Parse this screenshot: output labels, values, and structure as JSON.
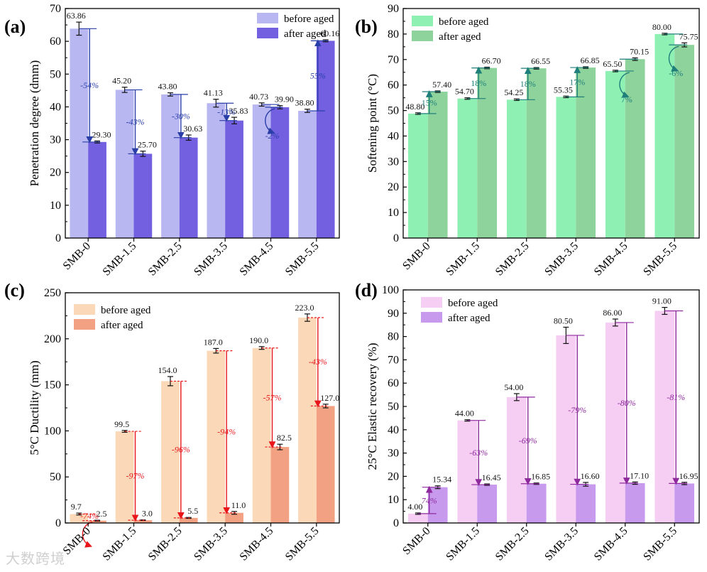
{
  "watermark": "大数跨境",
  "chart_data": [
    {
      "panel_label": "(a)",
      "type": "bar",
      "ylabel": "Penetration degree (dmm)",
      "ylim": [
        0,
        70
      ],
      "yticks": [
        0,
        10,
        20,
        30,
        40,
        50,
        60,
        70
      ],
      "categories": [
        "SMB-0",
        "SMB-1.5",
        "SMB-2.5",
        "SMB-3.5",
        "SMB-4.5",
        "SMB-5.5"
      ],
      "series": [
        {
          "name": "before aged",
          "color": "#b9b7f2",
          "values": [
            63.86,
            45.2,
            43.8,
            41.13,
            40.73,
            38.8
          ],
          "labels": [
            "63.86",
            "45.20",
            "43.80",
            "41.13",
            "40.73",
            "38.80"
          ],
          "errors": [
            2.0,
            0.8,
            0.5,
            1.2,
            0.5,
            0.5
          ]
        },
        {
          "name": "after aged",
          "color": "#7360e0",
          "values": [
            29.3,
            25.7,
            30.63,
            35.83,
            39.9,
            60.16
          ],
          "labels": [
            "29.30",
            "25.70",
            "30.63",
            "35.83",
            "39.90",
            "60.16"
          ],
          "errors": [
            0.3,
            0.8,
            0.8,
            1.0,
            0.5,
            0.3
          ]
        }
      ],
      "changes": [
        "-54%",
        "-43%",
        "-30%",
        "-13%",
        "-2%",
        "55%"
      ],
      "change_color": "#2a3ea8",
      "legend": "top-right"
    },
    {
      "panel_label": "(b)",
      "type": "bar",
      "ylabel": "Softening point (°C)",
      "ylim": [
        0,
        90
      ],
      "yticks": [
        0,
        10,
        20,
        30,
        40,
        50,
        60,
        70,
        80,
        90
      ],
      "categories": [
        "SMB-0",
        "SMB-1.5",
        "SMB-2.5",
        "SMB-3.5",
        "SMB-4.5",
        "SMB-5.5"
      ],
      "series": [
        {
          "name": "before aged",
          "color": "#8ff0b4",
          "values": [
            48.8,
            54.7,
            54.25,
            55.35,
            65.5,
            80.0
          ],
          "labels": [
            "48.80",
            "54.70",
            "54.25",
            "55.35",
            "65.50",
            "80.00"
          ],
          "errors": [
            0.3,
            0.3,
            0.3,
            0.3,
            0.3,
            0.3
          ]
        },
        {
          "name": "after aged",
          "color": "#8fd39c",
          "values": [
            57.4,
            66.7,
            66.55,
            66.85,
            70.15,
            75.75
          ],
          "labels": [
            "57.40",
            "66.70",
            "66.55",
            "66.85",
            "70.15",
            "75.75"
          ],
          "errors": [
            0.3,
            0.3,
            0.3,
            0.3,
            0.5,
            0.8
          ]
        }
      ],
      "changes": [
        "15%",
        "18%",
        "18%",
        "17%",
        "7%",
        "-6%"
      ],
      "change_color": "#1f7f7a",
      "legend": "top-left"
    },
    {
      "panel_label": "(c)",
      "type": "bar",
      "ylabel": "5°C Ductility (mm)",
      "ylim": [
        0,
        250
      ],
      "yticks": [
        0,
        50,
        100,
        150,
        200,
        250
      ],
      "categories": [
        "SMB-0",
        "SMB-1.5",
        "SMB-2.5",
        "SMB-3.5",
        "SMB-4.5",
        "SMB-5.5"
      ],
      "series": [
        {
          "name": "before aged",
          "color": "#fbd9b8",
          "values": [
            9.7,
            99.5,
            154.0,
            187.0,
            190.0,
            223.0
          ],
          "labels": [
            "9.7",
            "99.5",
            "154.0",
            "187.0",
            "190.0",
            "223.0"
          ],
          "errors": [
            1.0,
            1.0,
            5.0,
            2.5,
            1.5,
            4.0
          ]
        },
        {
          "name": "after aged",
          "color": "#f2a282",
          "values": [
            2.5,
            3.0,
            5.5,
            11.0,
            82.5,
            127.0
          ],
          "labels": [
            "2.5",
            "3.0",
            "5.5",
            "11.0",
            "82.5",
            "127.0"
          ],
          "errors": [
            0.5,
            0.3,
            0.5,
            1.5,
            3.0,
            2.0
          ]
        }
      ],
      "changes": [
        "-74%",
        "-97%",
        "-96%",
        "-94%",
        "-57%",
        "-43%"
      ],
      "change_color": "#e8161b",
      "legend": "top-left"
    },
    {
      "panel_label": "(d)",
      "type": "bar",
      "ylabel": "25°C Elastic recovery (%)",
      "ylim": [
        0,
        100
      ],
      "yticks": [
        0,
        10,
        20,
        30,
        40,
        50,
        60,
        70,
        80,
        90,
        100
      ],
      "categories": [
        "SMB-0",
        "SMB-1.5",
        "SMB-2.5",
        "SMB-3.5",
        "SMB-4.5",
        "SMB-5.5"
      ],
      "series": [
        {
          "name": "before aged",
          "color": "#f6cdf3",
          "values": [
            4.0,
            44.0,
            54.0,
            80.5,
            86.0,
            91.0
          ],
          "labels": [
            "4.00",
            "44.00",
            "54.00",
            "80.50",
            "86.00",
            "91.00"
          ],
          "errors": [
            0.3,
            0.3,
            1.5,
            3.5,
            1.5,
            1.5
          ]
        },
        {
          "name": "after aged",
          "color": "#c89aee",
          "values": [
            15.34,
            16.45,
            16.85,
            16.6,
            17.1,
            16.95
          ],
          "labels": [
            "15.34",
            "16.45",
            "16.85",
            "16.60",
            "17.10",
            "16.95"
          ],
          "errors": [
            0.6,
            0.3,
            0.3,
            0.8,
            0.5,
            0.5
          ]
        }
      ],
      "changes": [
        "74%",
        "-63%",
        "-69%",
        "-79%",
        "-80%",
        "-81%"
      ],
      "change_color": "#8e2a9e",
      "legend": "top-left"
    }
  ]
}
